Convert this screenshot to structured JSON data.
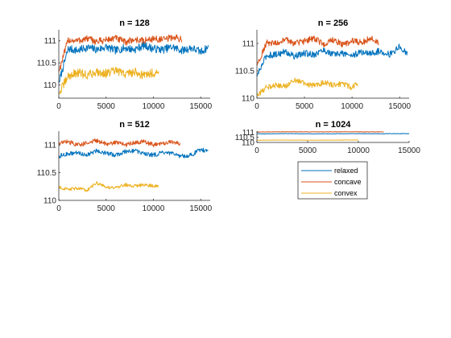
{
  "colors": {
    "relaxed": "#0072BD",
    "concave": "#D95319",
    "convex": "#EDB120"
  },
  "legend": {
    "placement": "below-bottom-right",
    "entries": [
      {
        "key": "relaxed",
        "label": "relaxed"
      },
      {
        "key": "concave",
        "label": "concave"
      },
      {
        "key": "convex",
        "label": "convex"
      }
    ]
  },
  "chart_data": [
    {
      "type": "line",
      "title": "n = 128",
      "xlim": [
        0,
        16000
      ],
      "ylim": [
        109.7,
        111.25
      ],
      "xticks": [
        0,
        5000,
        10000,
        15000
      ],
      "xtick_labels": [
        "0",
        "5000",
        "10000",
        "15000"
      ],
      "yticks": [
        110,
        110.5,
        111
      ],
      "ytick_labels": [
        "110",
        "110.5",
        "111"
      ],
      "grid": false,
      "series": [
        {
          "name": "relaxed",
          "x_end": 15800,
          "level": 110.82,
          "amp": 0.09,
          "x": [
            0,
            1000,
            2000,
            3000,
            4000,
            5000,
            6000,
            7000,
            8000,
            9000,
            10000,
            11000,
            12000,
            13000,
            14000,
            15000,
            15800
          ],
          "values": [
            110.05,
            110.82,
            110.78,
            110.85,
            110.8,
            110.86,
            110.78,
            110.84,
            110.8,
            110.9,
            110.82,
            110.8,
            110.86,
            110.78,
            110.84,
            110.75,
            110.85
          ]
        },
        {
          "name": "concave",
          "x_end": 13000,
          "level": 111.02,
          "amp": 0.08,
          "x": [
            0,
            1000,
            2000,
            3000,
            4000,
            5000,
            6000,
            7000,
            8000,
            9000,
            10000,
            11000,
            12000,
            13000
          ],
          "values": [
            110.3,
            111.02,
            111.0,
            111.05,
            110.98,
            111.02,
            111.06,
            110.97,
            111.03,
            111.0,
            111.05,
            111.02,
            111.08,
            111.04
          ]
        },
        {
          "name": "convex",
          "x_end": 10600,
          "level": 110.25,
          "amp": 0.1,
          "x": [
            0,
            1000,
            2000,
            3000,
            4000,
            5000,
            6000,
            7000,
            8000,
            9000,
            10000,
            10600
          ],
          "values": [
            109.8,
            110.2,
            110.28,
            110.22,
            110.3,
            110.26,
            110.32,
            110.25,
            110.3,
            110.22,
            110.28,
            110.26
          ]
        }
      ]
    },
    {
      "type": "line",
      "title": "n = 256",
      "xlim": [
        0,
        16000
      ],
      "ylim": [
        110,
        111.25
      ],
      "xticks": [
        0,
        5000,
        10000,
        15000
      ],
      "xtick_labels": [
        "0",
        "5000",
        "10000",
        "15000"
      ],
      "yticks": [
        110,
        110.5,
        111
      ],
      "ytick_labels": [
        "110",
        "110.5",
        "111"
      ],
      "grid": false,
      "series": [
        {
          "name": "relaxed",
          "x_end": 15800,
          "level": 110.82,
          "amp": 0.06,
          "x": [
            0,
            1000,
            2000,
            3000,
            4000,
            5000,
            6000,
            7000,
            8000,
            9000,
            10000,
            11000,
            12000,
            13000,
            14000,
            15000,
            15800
          ],
          "values": [
            110.4,
            110.78,
            110.8,
            110.85,
            110.76,
            110.82,
            110.8,
            110.88,
            110.8,
            110.82,
            110.78,
            110.84,
            110.82,
            110.86,
            110.8,
            110.94,
            110.82
          ]
        },
        {
          "name": "concave",
          "x_end": 12800,
          "level": 111.03,
          "amp": 0.06,
          "x": [
            0,
            1000,
            2000,
            3000,
            4000,
            5000,
            6000,
            7000,
            8000,
            9000,
            10000,
            11000,
            12000,
            12800
          ],
          "values": [
            110.6,
            111.02,
            111.0,
            111.06,
            111.0,
            111.04,
            111.1,
            110.98,
            111.06,
            110.98,
            111.04,
            111.02,
            111.1,
            111.02
          ]
        },
        {
          "name": "convex",
          "x_end": 10600,
          "level": 110.25,
          "amp": 0.05,
          "x": [
            0,
            1000,
            2000,
            3000,
            4000,
            5000,
            6000,
            7000,
            8000,
            9000,
            10000,
            10600
          ],
          "values": [
            110.05,
            110.2,
            110.24,
            110.22,
            110.34,
            110.26,
            110.24,
            110.28,
            110.25,
            110.26,
            110.2,
            110.26
          ]
        }
      ]
    },
    {
      "type": "line",
      "title": "n = 512",
      "xlim": [
        0,
        16000
      ],
      "ylim": [
        110,
        111.25
      ],
      "xticks": [
        0,
        5000,
        10000,
        15000
      ],
      "xtick_labels": [
        "0",
        "5000",
        "10000",
        "15000"
      ],
      "yticks": [
        110,
        110.5,
        111
      ],
      "ytick_labels": [
        "110",
        "110.5",
        "111"
      ],
      "grid": false,
      "series": [
        {
          "name": "relaxed",
          "x_end": 15800,
          "level": 110.84,
          "amp": 0.04,
          "x": [
            0,
            1000,
            2000,
            3000,
            4000,
            5000,
            6000,
            7000,
            8000,
            9000,
            10000,
            11000,
            12000,
            13000,
            14000,
            15000,
            15800
          ],
          "values": [
            110.8,
            110.84,
            110.86,
            110.82,
            110.9,
            110.85,
            110.82,
            110.88,
            110.9,
            110.84,
            110.82,
            110.86,
            110.84,
            110.8,
            110.82,
            110.92,
            110.88
          ]
        },
        {
          "name": "concave",
          "x_end": 12800,
          "level": 111.03,
          "amp": 0.04,
          "x": [
            0,
            1000,
            2000,
            3000,
            4000,
            5000,
            6000,
            7000,
            8000,
            9000,
            10000,
            11000,
            12000,
            12800
          ],
          "values": [
            111.04,
            111.06,
            111.0,
            111.04,
            111.08,
            111.02,
            111.05,
            111.0,
            111.04,
            111.06,
            111.0,
            111.02,
            111.06,
            111.02
          ]
        },
        {
          "name": "convex",
          "x_end": 10500,
          "level": 110.24,
          "amp": 0.03,
          "x": [
            0,
            1000,
            2000,
            3000,
            4000,
            5000,
            6000,
            7000,
            8000,
            9000,
            10000,
            10500
          ],
          "values": [
            110.24,
            110.2,
            110.22,
            110.18,
            110.32,
            110.24,
            110.22,
            110.28,
            110.26,
            110.28,
            110.26,
            110.25
          ]
        }
      ]
    },
    {
      "type": "line",
      "title": "n = 1024",
      "xlim": [
        0,
        15000
      ],
      "ylim": [
        110,
        111.1
      ],
      "xticks": [
        0,
        5000,
        10000,
        15000
      ],
      "xtick_labels": [
        "0",
        "5000",
        "10000",
        "15000"
      ],
      "yticks": [
        110,
        110.5,
        111
      ],
      "ytick_labels": [
        "110",
        "110.5",
        "111"
      ],
      "grid": false,
      "series": [
        {
          "name": "relaxed",
          "x_end": 15000,
          "level": 110.85,
          "amp": 0.02,
          "x": [
            0,
            3000,
            6000,
            9000,
            12000,
            15000
          ],
          "values": [
            110.84,
            110.86,
            110.84,
            110.86,
            110.85,
            110.86
          ]
        },
        {
          "name": "concave",
          "x_end": 12500,
          "level": 111.03,
          "amp": 0.02,
          "x": [
            0,
            3000,
            6000,
            9000,
            12000,
            12500
          ],
          "values": [
            111.02,
            111.04,
            111.03,
            111.04,
            111.03,
            111.03
          ]
        },
        {
          "name": "convex",
          "x_end": 10000,
          "level": 110.22,
          "amp": 0.02,
          "x": [
            0,
            3000,
            6000,
            9000,
            10000
          ],
          "values": [
            110.22,
            110.23,
            110.22,
            110.24,
            110.23
          ]
        }
      ]
    }
  ]
}
